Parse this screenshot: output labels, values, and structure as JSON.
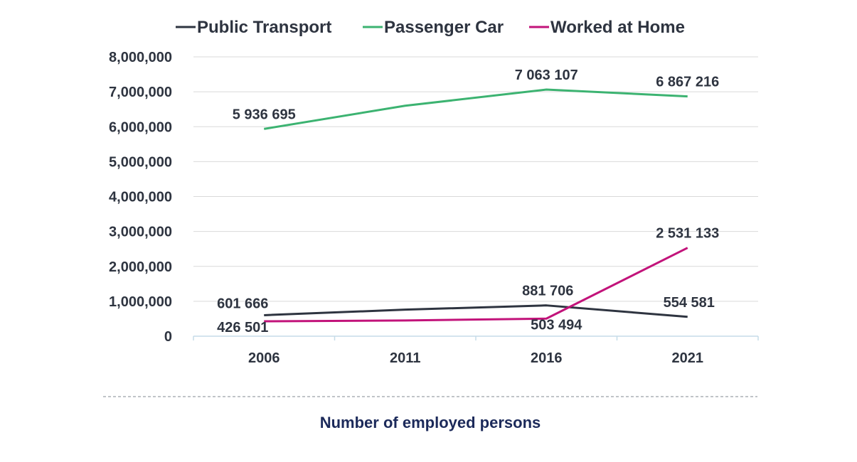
{
  "chart_data": {
    "type": "line",
    "categories": [
      "2006",
      "2011",
      "2016",
      "2021"
    ],
    "series": [
      {
        "name": "Public Transport",
        "color": "#2e3440",
        "values": [
          601666,
          760000,
          881706,
          554581
        ],
        "labels": [
          "601 666",
          "",
          "881 706",
          "554 581"
        ]
      },
      {
        "name": "Passenger Car",
        "color": "#3cb371",
        "values": [
          5936695,
          6600000,
          7063107,
          6867216
        ],
        "labels": [
          "5 936 695",
          "",
          "7 063 107",
          "6 867 216"
        ]
      },
      {
        "name": "Worked at Home",
        "color": "#c2137a",
        "values": [
          426501,
          450000,
          503494,
          2531133
        ],
        "labels": [
          "426 501",
          "",
          "503 494",
          "2 531 133"
        ]
      }
    ],
    "ylim": [
      0,
      8000000
    ],
    "yticks": [
      0,
      1000000,
      2000000,
      3000000,
      4000000,
      5000000,
      6000000,
      7000000,
      8000000
    ],
    "ytick_labels": [
      "0",
      "1,000,000",
      "2,000,000",
      "3,000,000",
      "4,000,000",
      "5,000,000",
      "6,000,000",
      "7,000,000",
      "8,000,000"
    ],
    "grid": true,
    "legend_position": "top",
    "caption": "Number of  employed persons"
  }
}
